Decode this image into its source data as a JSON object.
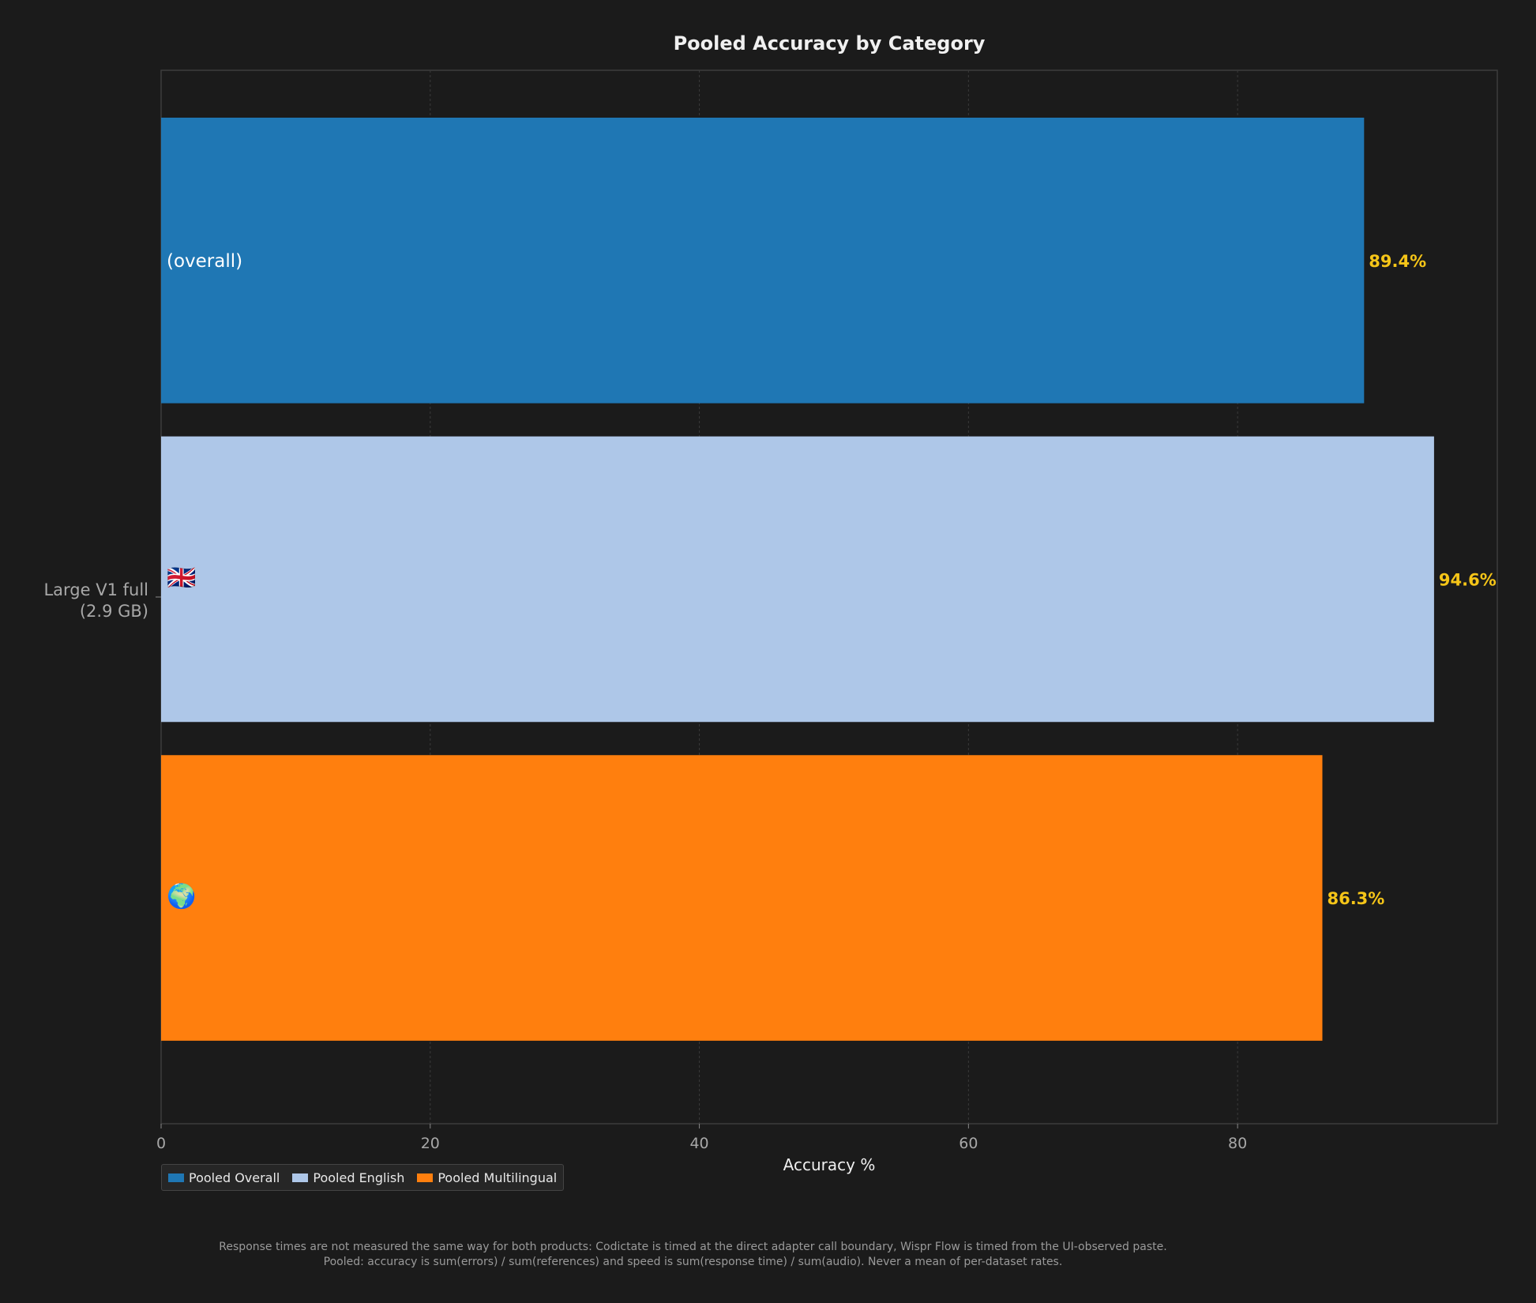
{
  "chart_data": {
    "type": "bar",
    "orientation": "horizontal",
    "title": "Pooled Accuracy by Category",
    "xlabel": "Accuracy %",
    "ylabel": "",
    "xlim": [
      0,
      99.3
    ],
    "xticks": [
      0,
      20,
      40,
      60,
      80
    ],
    "grid": true,
    "legend_position": "bottom-left",
    "category_label": "Large V1 full\n(2.9 GB)",
    "series": [
      {
        "name": "Pooled Overall",
        "value": 89.4,
        "value_label": "89.4%",
        "bar_text": "(overall)",
        "color": "#1f77b4"
      },
      {
        "name": "Pooled English",
        "value": 94.6,
        "value_label": "94.6%",
        "bar_text": "🇬🇧",
        "color": "#aec7e8"
      },
      {
        "name": "Pooled Multilingual",
        "value": 86.3,
        "value_label": "86.3%",
        "bar_text": "🌍",
        "color": "#ff7f0e"
      }
    ],
    "value_label_color": "#f5c518"
  },
  "footnote": {
    "line1": "Response times are not measured the same way for both products: Codictate is timed at the direct adapter call boundary, Wispr Flow is timed from the UI-observed paste.",
    "line2": "Pooled: accuracy is sum(errors) / sum(references) and speed is sum(response time) / sum(audio). Never a mean of per-dataset rates."
  }
}
